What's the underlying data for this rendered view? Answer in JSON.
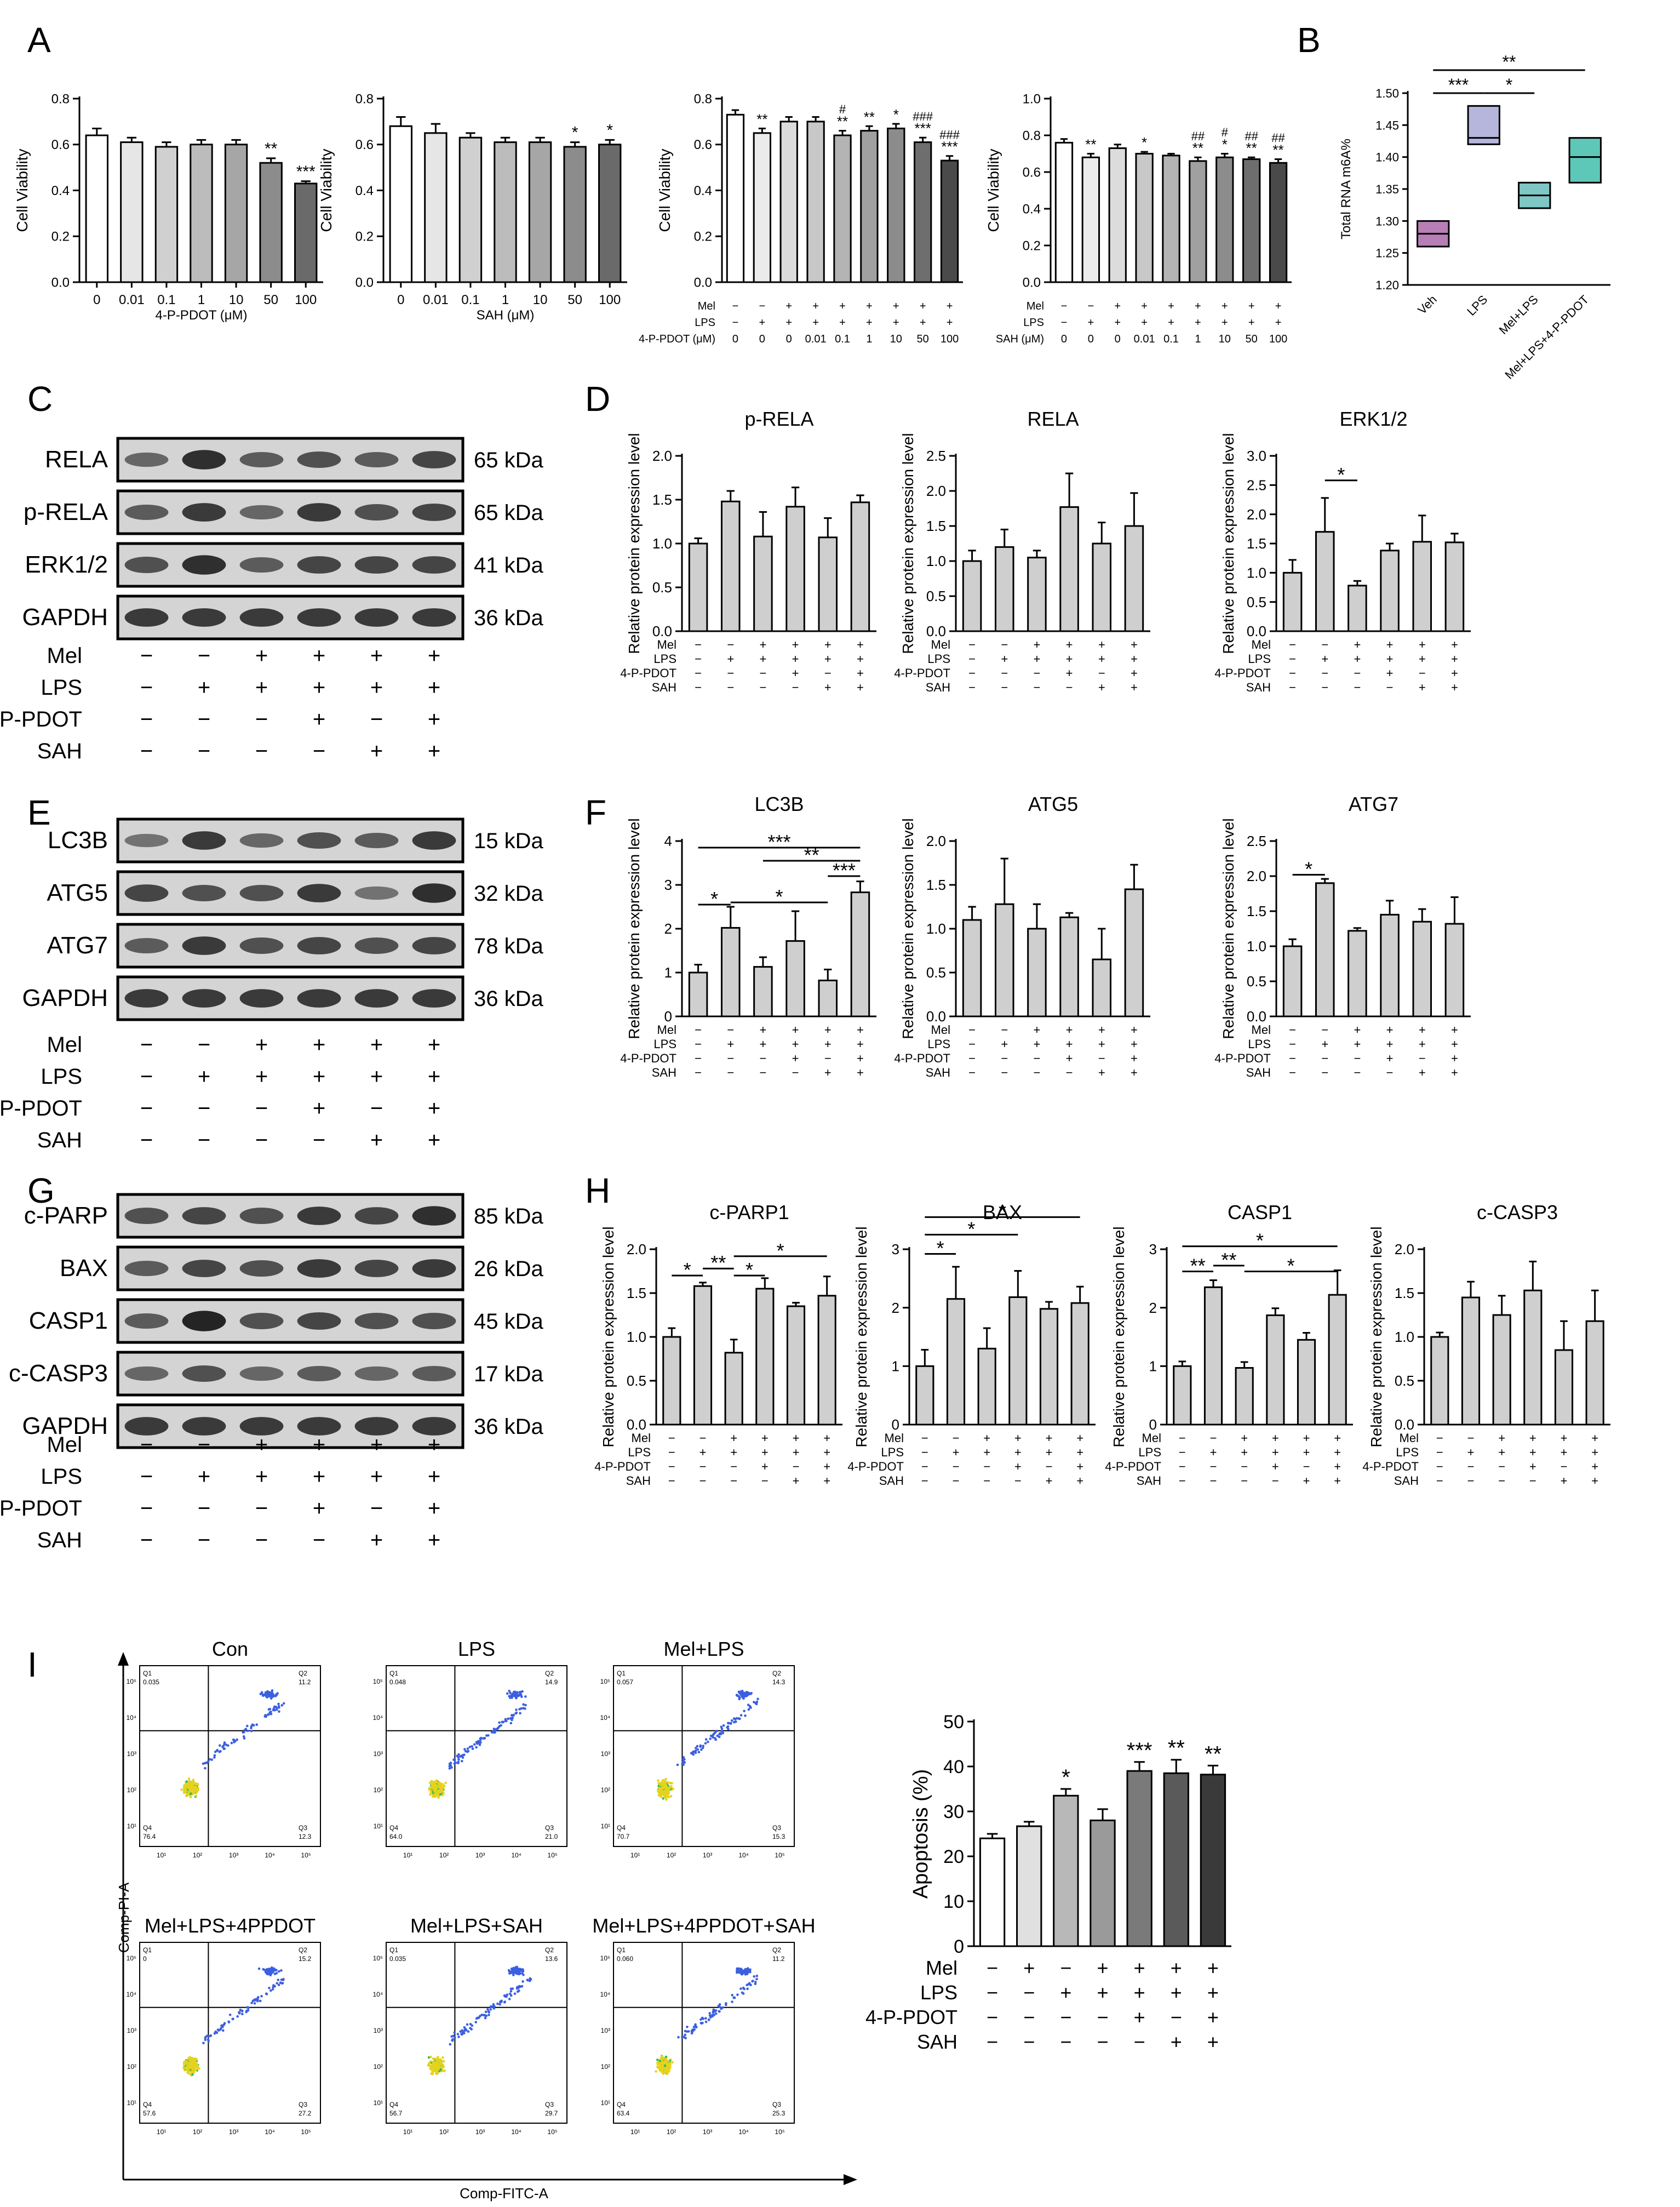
{
  "panel_letters": [
    "A",
    "B",
    "C",
    "D",
    "E",
    "F",
    "G",
    "H",
    "I"
  ],
  "matrix_keys": {
    "mel": "Mel",
    "lps": "LPS",
    "pdot": "4-P-PDOT",
    "sah": "SAH"
  },
  "kda_unit": "kDa",
  "blots": {
    "C": {
      "proteins": [
        "RELA",
        "p-RELA",
        "ERK1/2",
        "GAPDH"
      ],
      "sizes": [
        "65 kDa",
        "65 kDa",
        "41 kDa",
        "36 kDa"
      ]
    },
    "E": {
      "proteins": [
        "LC3B",
        "ATG5",
        "ATG7",
        "GAPDH"
      ],
      "sizes": [
        "15 kDa",
        "32 kDa",
        "78 kDa",
        "36 kDa"
      ]
    },
    "G": {
      "proteins": [
        "c-PARP",
        "BAX",
        "CASP1",
        "c-CASP3",
        "GAPDH"
      ],
      "sizes": [
        "85 kDa",
        "26 kDa",
        "45 kDa",
        "17 kDa",
        "36 kDa"
      ]
    }
  },
  "flow": {
    "x_label": "Comp-FITC-A",
    "y_label": "Comp-PI-A",
    "ticks": [
      "10¹",
      "10²",
      "10³",
      "10⁴",
      "10⁵"
    ],
    "plots": [
      {
        "title": "Con",
        "q1": "0.035",
        "q2": "11.2",
        "q3": "12.3",
        "q4": "76.4"
      },
      {
        "title": "LPS",
        "q1": "0.048",
        "q2": "14.9",
        "q3": "21.0",
        "q4": "64.0"
      },
      {
        "title": "Mel+LPS",
        "q1": "0.057",
        "q2": "14.3",
        "q3": "15.3",
        "q4": "70.7"
      },
      {
        "title": "Mel+LPS+4PPDOT",
        "q1": "0",
        "q2": "15.2",
        "q3": "27.2",
        "q4": "57.6"
      },
      {
        "title": "Mel+LPS+SAH",
        "q1": "0.035",
        "q2": "13.6",
        "q3": "29.7",
        "q4": "56.7"
      },
      {
        "title": "Mel+LPS+4PPDOT+SAH",
        "q1": "0.060",
        "q2": "11.2",
        "q3": "25.3",
        "q4": "63.4"
      }
    ]
  },
  "chart_data": [
    {
      "id": "A1",
      "type": "bar",
      "ylabel": "Cell Viability",
      "xlabel": "4-P-PDOT (μM)",
      "categories": [
        "0",
        "0.01",
        "0.1",
        "1",
        "10",
        "50",
        "100"
      ],
      "values": [
        0.64,
        0.61,
        0.59,
        0.6,
        0.6,
        0.52,
        0.43
      ],
      "errors": [
        0.03,
        0.02,
        0.02,
        0.02,
        0.02,
        0.02,
        0.01
      ],
      "sig": [
        "",
        "",
        "",
        "",
        "",
        "**",
        "***"
      ],
      "colors": [
        "#ffffff",
        "#e6e6e6",
        "#d0d0d0",
        "#bcbcbc",
        "#a6a6a6",
        "#8c8c8c",
        "#6a6a6a"
      ],
      "ylim": [
        0,
        0.8
      ],
      "yticks": [
        "0.0",
        "0.2",
        "0.4",
        "0.6",
        "0.8"
      ]
    },
    {
      "id": "A2",
      "type": "bar",
      "ylabel": "Cell Viability",
      "xlabel": "SAH (μM)",
      "categories": [
        "0",
        "0.01",
        "0.1",
        "1",
        "10",
        "50",
        "100"
      ],
      "values": [
        0.68,
        0.65,
        0.63,
        0.61,
        0.61,
        0.59,
        0.6
      ],
      "errors": [
        0.04,
        0.04,
        0.02,
        0.02,
        0.02,
        0.02,
        0.02
      ],
      "sig": [
        "",
        "",
        "",
        "",
        "",
        "*",
        "*"
      ],
      "colors": [
        "#ffffff",
        "#e6e6e6",
        "#d0d0d0",
        "#bcbcbc",
        "#a6a6a6",
        "#8c8c8c",
        "#6a6a6a"
      ],
      "ylim": [
        0,
        0.8
      ],
      "yticks": [
        "0.0",
        "0.2",
        "0.4",
        "0.6",
        "0.8"
      ]
    },
    {
      "id": "A3",
      "type": "bar",
      "ylabel": "Cell Viability",
      "values": [
        0.73,
        0.65,
        0.7,
        0.7,
        0.64,
        0.66,
        0.67,
        0.61,
        0.53
      ],
      "errors": [
        0.02,
        0.02,
        0.02,
        0.02,
        0.02,
        0.02,
        0.02,
        0.02,
        0.02
      ],
      "sig": [
        "",
        "**",
        "",
        "",
        "**",
        "**",
        "*",
        "***",
        "***"
      ],
      "sig2": [
        "",
        "",
        "",
        "",
        "#",
        "",
        "",
        "###",
        "###"
      ],
      "colors": [
        "#ffffff",
        "#ebebeb",
        "#dcdcdc",
        "#c8c8c8",
        "#b4b4b4",
        "#a0a0a0",
        "#8c8c8c",
        "#6e6e6e",
        "#4a4a4a"
      ],
      "ylim": [
        0,
        0.8
      ],
      "yticks": [
        "0.0",
        "0.2",
        "0.4",
        "0.6",
        "0.8"
      ],
      "matrix": [
        {
          "label": "Mel",
          "cells": [
            "−",
            "−",
            "+",
            "+",
            "+",
            "+",
            "+",
            "+",
            "+"
          ]
        },
        {
          "label": "LPS",
          "cells": [
            "−",
            "+",
            "+",
            "+",
            "+",
            "+",
            "+",
            "+",
            "+"
          ]
        },
        {
          "label": "4-P-PDOT (μM)",
          "cells": [
            "0",
            "0",
            "0",
            "0.01",
            "0.1",
            "1",
            "10",
            "50",
            "100"
          ]
        }
      ]
    },
    {
      "id": "A4",
      "type": "bar",
      "ylabel": "Cell Viability",
      "values": [
        0.76,
        0.68,
        0.73,
        0.7,
        0.69,
        0.66,
        0.68,
        0.67,
        0.65
      ],
      "errors": [
        0.02,
        0.02,
        0.02,
        0.01,
        0.01,
        0.02,
        0.02,
        0.01,
        0.02
      ],
      "sig": [
        "",
        "**",
        "",
        "*",
        "",
        "**",
        "*",
        "**",
        "**"
      ],
      "sig2": [
        "",
        "",
        "",
        "",
        "",
        "##",
        "#",
        "##",
        "##"
      ],
      "colors": [
        "#ffffff",
        "#ebebeb",
        "#dcdcdc",
        "#c8c8c8",
        "#b4b4b4",
        "#a0a0a0",
        "#8c8c8c",
        "#6e6e6e",
        "#4a4a4a"
      ],
      "ylim": [
        0,
        1.0
      ],
      "yticks": [
        "0.0",
        "0.2",
        "0.4",
        "0.6",
        "0.8",
        "1.0"
      ],
      "matrix": [
        {
          "label": "Mel",
          "cells": [
            "−",
            "−",
            "+",
            "+",
            "+",
            "+",
            "+",
            "+",
            "+"
          ]
        },
        {
          "label": "LPS",
          "cells": [
            "−",
            "+",
            "+",
            "+",
            "+",
            "+",
            "+",
            "+",
            "+"
          ]
        },
        {
          "label": "SAH (μM)",
          "cells": [
            "0",
            "0",
            "0",
            "0.01",
            "0.1",
            "1",
            "10",
            "50",
            "100"
          ]
        }
      ]
    },
    {
      "id": "B",
      "type": "box",
      "ylabel": "Total RNA m6A%",
      "categories": [
        "Veh",
        "LPS",
        "Mel+LPS",
        "Mel+LPS+4-P-PDOT"
      ],
      "boxes": [
        {
          "min": 1.26,
          "median": 1.28,
          "max": 1.3
        },
        {
          "min": 1.42,
          "median": 1.43,
          "max": 1.48
        },
        {
          "min": 1.32,
          "median": 1.34,
          "max": 1.36
        },
        {
          "min": 1.36,
          "median": 1.4,
          "max": 1.43
        }
      ],
      "colors": [
        "#b77fb5",
        "#b6b5dc",
        "#7fc7c4",
        "#5ec8b8"
      ],
      "ylim": [
        1.2,
        1.5
      ],
      "yticks": [
        "1.20",
        "1.25",
        "1.30",
        "1.35",
        "1.40",
        "1.45",
        "1.50"
      ],
      "brackets": [
        {
          "from": 0,
          "to": 1,
          "label": "***"
        },
        {
          "from": 1,
          "to": 2,
          "label": "*"
        },
        {
          "from": 0,
          "to": 3,
          "label": "**"
        }
      ]
    },
    {
      "id": "D1",
      "type": "bar",
      "title": "p-RELA",
      "ylabel": "Relative protein expression level",
      "values": [
        1.0,
        1.48,
        1.08,
        1.42,
        1.07,
        1.47
      ],
      "errors": [
        0.06,
        0.12,
        0.28,
        0.22,
        0.22,
        0.08
      ],
      "ylim": [
        0,
        2.0
      ],
      "yticks": [
        "0.0",
        "0.5",
        "1.0",
        "1.5",
        "2.0"
      ],
      "brackets": []
    },
    {
      "id": "D2",
      "type": "bar",
      "title": "RELA",
      "ylabel": "Relative protein expression level",
      "values": [
        1.0,
        1.2,
        1.05,
        1.77,
        1.25,
        1.5
      ],
      "errors": [
        0.15,
        0.25,
        0.1,
        0.48,
        0.3,
        0.47
      ],
      "ylim": [
        0,
        2.5
      ],
      "yticks": [
        "0.0",
        "0.5",
        "1.0",
        "1.5",
        "2.0",
        "2.5"
      ],
      "brackets": []
    },
    {
      "id": "D3",
      "type": "bar",
      "title": "ERK1/2",
      "ylabel": "Relative protein expression level",
      "values": [
        1.0,
        1.7,
        0.78,
        1.38,
        1.53,
        1.52
      ],
      "errors": [
        0.22,
        0.58,
        0.08,
        0.12,
        0.45,
        0.15
      ],
      "ylim": [
        0,
        3.0
      ],
      "yticks": [
        "0.0",
        "0.5",
        "1.0",
        "1.5",
        "2.0",
        "2.5",
        "3.0"
      ],
      "brackets": [
        {
          "from": 1,
          "to": 2,
          "label": "*",
          "y": 2.58
        }
      ]
    },
    {
      "id": "F1",
      "type": "bar",
      "title": "LC3B",
      "ylabel": "Relative protein expression level",
      "values": [
        1.0,
        2.02,
        1.13,
        1.72,
        0.82,
        2.83
      ],
      "errors": [
        0.18,
        0.48,
        0.22,
        0.68,
        0.25,
        0.25
      ],
      "ylim": [
        0,
        4
      ],
      "yticks": [
        "0",
        "1",
        "2",
        "3",
        "4"
      ],
      "brackets": [
        {
          "from": 0,
          "to": 1,
          "label": "*",
          "y": 2.55
        },
        {
          "from": 1,
          "to": 4,
          "label": "*",
          "y": 2.6
        },
        {
          "from": 4,
          "to": 5,
          "label": "***",
          "y": 3.2
        },
        {
          "from": 2,
          "to": 5,
          "label": "**",
          "y": 3.55
        },
        {
          "from": 0,
          "to": 5,
          "label": "***",
          "y": 3.85
        }
      ]
    },
    {
      "id": "F2",
      "type": "bar",
      "title": "ATG5",
      "ylabel": "Relative protein expression level",
      "values": [
        1.1,
        1.28,
        1.0,
        1.13,
        0.65,
        1.45
      ],
      "errors": [
        0.15,
        0.52,
        0.28,
        0.05,
        0.35,
        0.28
      ],
      "ylim": [
        0,
        2.0
      ],
      "yticks": [
        "0.0",
        "0.5",
        "1.0",
        "1.5",
        "2.0"
      ],
      "brackets": []
    },
    {
      "id": "F3",
      "type": "bar",
      "title": "ATG7",
      "ylabel": "Relative protein expression level",
      "values": [
        1.0,
        1.9,
        1.22,
        1.45,
        1.35,
        1.32
      ],
      "errors": [
        0.1,
        0.06,
        0.04,
        0.2,
        0.18,
        0.38
      ],
      "ylim": [
        0,
        2.5
      ],
      "yticks": [
        "0.0",
        "0.5",
        "1.0",
        "1.5",
        "2.0",
        "2.5"
      ],
      "brackets": [
        {
          "from": 0,
          "to": 1,
          "label": "*",
          "y": 2.02
        }
      ]
    },
    {
      "id": "H1",
      "type": "bar",
      "title": "c-PARP1",
      "ylabel": "Relative protein expression level",
      "values": [
        1.0,
        1.58,
        0.82,
        1.55,
        1.35,
        1.47
      ],
      "errors": [
        0.1,
        0.04,
        0.15,
        0.12,
        0.04,
        0.22
      ],
      "ylim": [
        0,
        2.0
      ],
      "yticks": [
        "0.0",
        "0.5",
        "1.0",
        "1.5",
        "2.0"
      ],
      "brackets": [
        {
          "from": 0,
          "to": 1,
          "label": "*",
          "y": 1.7
        },
        {
          "from": 1,
          "to": 2,
          "label": "**",
          "y": 1.78
        },
        {
          "from": 2,
          "to": 3,
          "label": "*",
          "y": 1.7
        },
        {
          "from": 2,
          "to": 5,
          "label": "*",
          "y": 1.92
        }
      ]
    },
    {
      "id": "H2",
      "type": "bar",
      "title": "BAX",
      "ylabel": "Relative protein expression level",
      "values": [
        1.0,
        2.15,
        1.3,
        2.18,
        1.98,
        2.08
      ],
      "errors": [
        0.28,
        0.55,
        0.35,
        0.45,
        0.12,
        0.28
      ],
      "ylim": [
        0,
        3
      ],
      "yticks": [
        "0",
        "1",
        "2",
        "3"
      ],
      "brackets": [
        {
          "from": 0,
          "to": 1,
          "label": "*",
          "y": 2.92
        },
        {
          "from": 0,
          "to": 3,
          "label": "*",
          "y": 3.25
        },
        {
          "from": 0,
          "to": 5,
          "label": "*",
          "y": 3.55
        }
      ]
    },
    {
      "id": "H3",
      "type": "bar",
      "title": "CASP1",
      "ylabel": "Relative protein expression level",
      "values": [
        1.0,
        2.35,
        0.97,
        1.87,
        1.45,
        2.22
      ],
      "errors": [
        0.08,
        0.12,
        0.1,
        0.12,
        0.12,
        0.42
      ],
      "ylim": [
        0,
        3
      ],
      "yticks": [
        "0",
        "1",
        "2",
        "3"
      ],
      "brackets": [
        {
          "from": 0,
          "to": 1,
          "label": "**",
          "y": 2.62
        },
        {
          "from": 1,
          "to": 2,
          "label": "**",
          "y": 2.72
        },
        {
          "from": 2,
          "to": 5,
          "label": "*",
          "y": 2.62
        },
        {
          "from": 0,
          "to": 5,
          "label": "*",
          "y": 3.05
        }
      ]
    },
    {
      "id": "H4",
      "type": "bar",
      "title": "c-CASP3",
      "ylabel": "Relative protein expression level",
      "values": [
        1.0,
        1.45,
        1.25,
        1.53,
        0.85,
        1.18
      ],
      "errors": [
        0.05,
        0.18,
        0.22,
        0.33,
        0.33,
        0.35
      ],
      "ylim": [
        0,
        2.0
      ],
      "yticks": [
        "0.0",
        "0.5",
        "1.0",
        "1.5",
        "2.0"
      ],
      "brackets": []
    },
    {
      "id": "I",
      "type": "bar",
      "ylabel": "Apoptosis (%)",
      "values": [
        24.0,
        26.7,
        33.5,
        28.0,
        39.0,
        38.5,
        38.2
      ],
      "errors": [
        1.0,
        1.0,
        1.5,
        2.5,
        2.0,
        3.0,
        2.0
      ],
      "sig": [
        "",
        "",
        "*",
        "",
        "***",
        "**",
        "**"
      ],
      "colors": [
        "#ffffff",
        "#e0e0e0",
        "#b8b8b8",
        "#9a9a9a",
        "#7a7a7a",
        "#5a5a5a",
        "#3a3a3a"
      ],
      "ylim": [
        0,
        50
      ],
      "yticks": [
        "0",
        "10",
        "20",
        "30",
        "40",
        "50"
      ],
      "matrix": [
        {
          "label": "Mel",
          "cells": [
            "−",
            "+",
            "−",
            "+",
            "+",
            "+",
            "+"
          ]
        },
        {
          "label": "LPS",
          "cells": [
            "−",
            "−",
            "+",
            "+",
            "+",
            "+",
            "+"
          ]
        },
        {
          "label": "4-P-PDOT",
          "cells": [
            "−",
            "−",
            "−",
            "−",
            "+",
            "−",
            "+"
          ]
        },
        {
          "label": "SAH",
          "cells": [
            "−",
            "−",
            "−",
            "−",
            "−",
            "+",
            "+"
          ]
        }
      ]
    }
  ]
}
